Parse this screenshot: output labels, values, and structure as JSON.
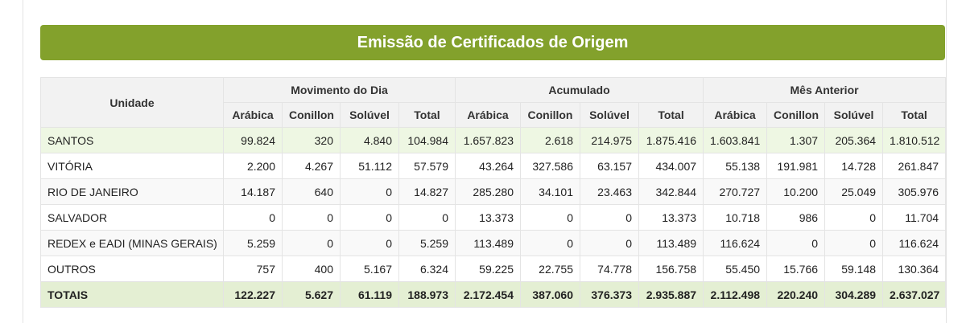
{
  "title": "Emissão de Certificados de Origem",
  "header": {
    "unit_label": "Unidade",
    "groups": [
      "Movimento do Dia",
      "Acumulado",
      "Mês Anterior"
    ],
    "subcolumns": [
      "Arábica",
      "Conillon",
      "Solúvel",
      "Total"
    ]
  },
  "rows": [
    {
      "name": "SANTOS",
      "values": [
        "99.824",
        "320",
        "4.840",
        "104.984",
        "1.657.823",
        "2.618",
        "214.975",
        "1.875.416",
        "1.603.841",
        "1.307",
        "205.364",
        "1.810.512"
      ]
    },
    {
      "name": "VITÓRIA",
      "values": [
        "2.200",
        "4.267",
        "51.112",
        "57.579",
        "43.264",
        "327.586",
        "63.157",
        "434.007",
        "55.138",
        "191.981",
        "14.728",
        "261.847"
      ]
    },
    {
      "name": "RIO DE JANEIRO",
      "values": [
        "14.187",
        "640",
        "0",
        "14.827",
        "285.280",
        "34.101",
        "23.463",
        "342.844",
        "270.727",
        "10.200",
        "25.049",
        "305.976"
      ]
    },
    {
      "name": "SALVADOR",
      "values": [
        "0",
        "0",
        "0",
        "0",
        "13.373",
        "0",
        "0",
        "13.373",
        "10.718",
        "986",
        "0",
        "11.704"
      ]
    },
    {
      "name": "REDEX e EADI (MINAS GERAIS)",
      "values": [
        "5.259",
        "0",
        "0",
        "5.259",
        "113.489",
        "0",
        "0",
        "113.489",
        "116.624",
        "0",
        "0",
        "116.624"
      ]
    },
    {
      "name": "OUTROS",
      "values": [
        "757",
        "400",
        "5.167",
        "6.324",
        "59.225",
        "22.755",
        "74.778",
        "156.758",
        "55.450",
        "15.766",
        "59.148",
        "130.364"
      ]
    }
  ],
  "totals": {
    "name": "TOTAIS",
    "values": [
      "122.227",
      "5.627",
      "61.119",
      "188.973",
      "2.172.454",
      "387.060",
      "376.373",
      "2.935.887",
      "2.112.498",
      "220.240",
      "304.289",
      "2.637.027"
    ]
  },
  "colors": {
    "title_bg": "#83a12c",
    "highlight_row": "#eef7e3",
    "totals_row": "#e4efd3"
  }
}
